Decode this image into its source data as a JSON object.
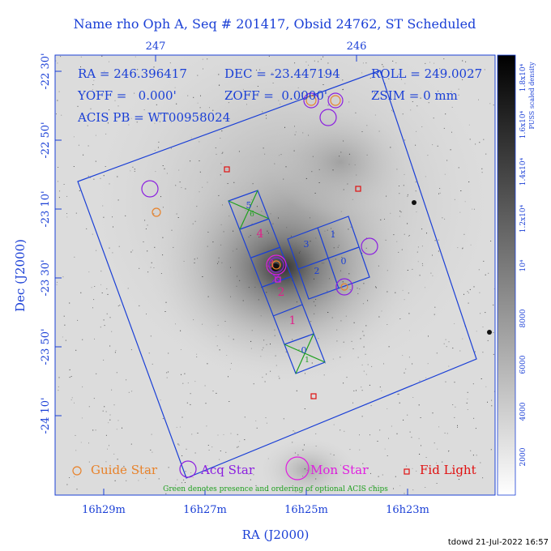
{
  "header": {
    "title": "Name rho Oph A, Seq # 201417, Obsid 24762, ST Scheduled"
  },
  "axes": {
    "top_ticks": [
      "247",
      "246"
    ],
    "left_ticks": [
      "-22 30'",
      "-22 50'",
      "-23 10'",
      "-23 30'",
      "-23 50'",
      "-24 10'"
    ],
    "bottom_ticks": [
      "16h29m",
      "16h27m",
      "16h25m",
      "16h23m"
    ],
    "xlabel": "RA (J2000)",
    "ylabel": "Dec (J2000)"
  },
  "info": {
    "ra": "RA = 246.396417",
    "dec": "DEC = -23.447194",
    "roll": "ROLL = 249.0027",
    "yoff": "YOFF =   0.000'",
    "zoff": "ZOFF =  0.0000'",
    "zsim": "ZSIM = 0 mm",
    "acis_pb": "ACIS PB = WT00958024"
  },
  "chips": {
    "s_labels": [
      "5",
      "4",
      "3",
      "2",
      "1",
      "0"
    ],
    "i_labels": [
      "3",
      "1",
      "2",
      "0"
    ]
  },
  "legend": {
    "guide": "Guide Star",
    "acq": "Acq Star",
    "mon": "Mon Star",
    "fid": "Fid Light",
    "note": "Green denotes presence and ordering of optional ACIS chips"
  },
  "colorbar": {
    "label": "PUSS scaled density",
    "ticks": [
      "2000",
      "4000",
      "6000",
      "8000",
      "10⁴",
      "1.2x10⁴",
      "1.4x10⁴",
      "1.6x10⁴",
      "1.8x10⁴"
    ]
  },
  "footer": {
    "stamp": "tdowd 21-Jul-2022 16:57"
  },
  "colors": {
    "frame": "#1a3fd6",
    "guide": "#e8822a",
    "acq": "#8b1ee0",
    "mon": "#e01ee0",
    "fid": "#e01010",
    "optional": "#1fa01f",
    "chip_num": "#e0208a",
    "text": "#1a3fd6"
  }
}
